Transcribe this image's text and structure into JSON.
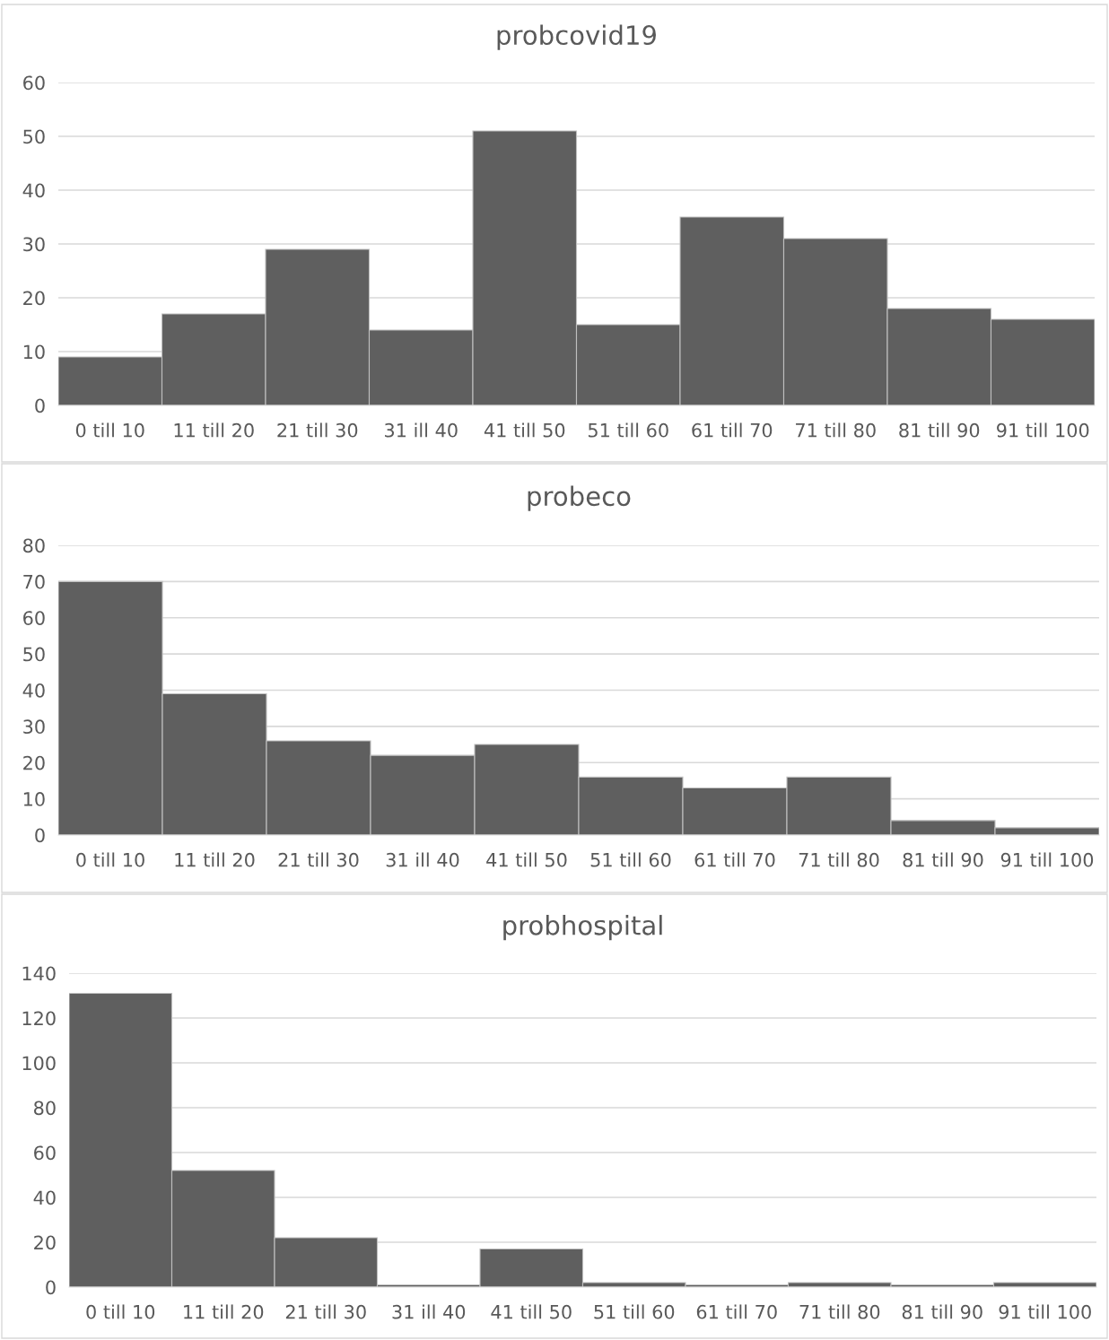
{
  "chart_data": [
    {
      "type": "bar",
      "title": "probcovid19",
      "categories": [
        "0 till 10",
        "11 till 20",
        "21 till 30",
        "31 ill 40",
        "41 till 50",
        "51 till 60",
        "61 till 70",
        "71 till 80",
        "81 till 90",
        "91 till 100"
      ],
      "values": [
        9,
        17,
        29,
        14,
        51,
        15,
        35,
        31,
        18,
        16
      ],
      "color": "#5f5f5f",
      "ylim": [
        0,
        60
      ],
      "yticks": [
        0,
        10,
        20,
        30,
        40,
        50,
        60
      ],
      "grid": "y"
    },
    {
      "type": "bar",
      "title": "probeco",
      "categories": [
        "0 till 10",
        "11 till 20",
        "21 till 30",
        "31 ill 40",
        "41 till 50",
        "51 till 60",
        "61 till 70",
        "71 till 80",
        "81 till 90",
        "91 till 100"
      ],
      "values": [
        70,
        39,
        26,
        22,
        25,
        16,
        13,
        16,
        4,
        2
      ],
      "color": "#5f5f5f",
      "ylim": [
        0,
        80
      ],
      "yticks": [
        0,
        10,
        20,
        30,
        40,
        50,
        60,
        70,
        80
      ],
      "grid": "y"
    },
    {
      "type": "bar",
      "title": "probhospital",
      "categories": [
        "0 till 10",
        "11 till 20",
        "21 till 30",
        "31 ill 40",
        "41 till 50",
        "51 till 60",
        "61 till 70",
        "71 till 80",
        "81 till 90",
        "91 till 100"
      ],
      "values": [
        131,
        52,
        22,
        1,
        17,
        2,
        1,
        2,
        1,
        2
      ],
      "color": "#5f5f5f",
      "ylim": [
        0,
        140
      ],
      "yticks": [
        0,
        20,
        40,
        60,
        80,
        100,
        120,
        140
      ],
      "grid": "y"
    }
  ]
}
